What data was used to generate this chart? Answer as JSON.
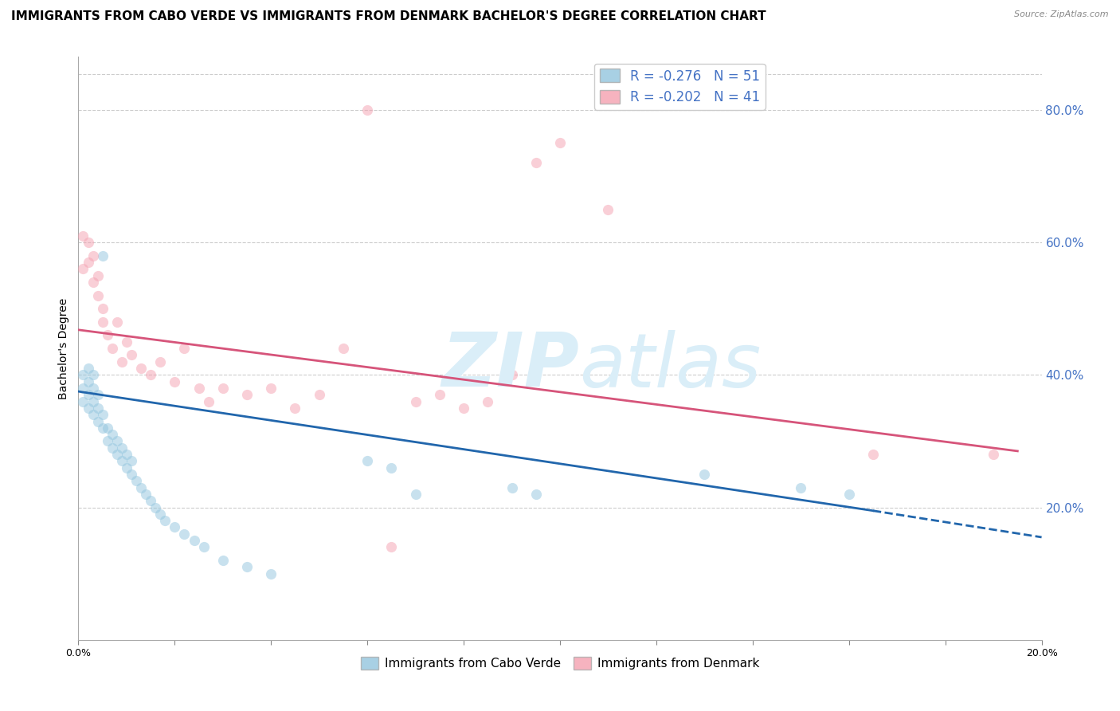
{
  "title": "IMMIGRANTS FROM CABO VERDE VS IMMIGRANTS FROM DENMARK BACHELOR'S DEGREE CORRELATION CHART",
  "source": "Source: ZipAtlas.com",
  "ylabel": "Bachelor's Degree",
  "right_ytick_labels": [
    "20.0%",
    "40.0%",
    "60.0%",
    "80.0%"
  ],
  "right_ytick_values": [
    0.2,
    0.4,
    0.6,
    0.8
  ],
  "xlim": [
    0.0,
    0.2
  ],
  "ylim": [
    0.0,
    0.88
  ],
  "legend_entry_blue": "R = -0.276   N = 51",
  "legend_entry_pink": "R = -0.202   N = 41",
  "legend_label_blue": "Immigrants from Cabo Verde",
  "legend_label_pink": "Immigrants from Denmark",
  "blue_scatter_x": [
    0.001,
    0.001,
    0.001,
    0.002,
    0.002,
    0.002,
    0.002,
    0.003,
    0.003,
    0.003,
    0.003,
    0.004,
    0.004,
    0.004,
    0.005,
    0.005,
    0.005,
    0.006,
    0.006,
    0.007,
    0.007,
    0.008,
    0.008,
    0.009,
    0.009,
    0.01,
    0.01,
    0.011,
    0.011,
    0.012,
    0.013,
    0.014,
    0.015,
    0.016,
    0.017,
    0.018,
    0.02,
    0.022,
    0.024,
    0.026,
    0.03,
    0.035,
    0.04,
    0.06,
    0.065,
    0.07,
    0.09,
    0.095,
    0.13,
    0.15,
    0.16
  ],
  "blue_scatter_y": [
    0.36,
    0.38,
    0.4,
    0.35,
    0.37,
    0.39,
    0.41,
    0.34,
    0.36,
    0.38,
    0.4,
    0.33,
    0.35,
    0.37,
    0.32,
    0.34,
    0.58,
    0.3,
    0.32,
    0.29,
    0.31,
    0.28,
    0.3,
    0.27,
    0.29,
    0.26,
    0.28,
    0.25,
    0.27,
    0.24,
    0.23,
    0.22,
    0.21,
    0.2,
    0.19,
    0.18,
    0.17,
    0.16,
    0.15,
    0.14,
    0.12,
    0.11,
    0.1,
    0.27,
    0.26,
    0.22,
    0.23,
    0.22,
    0.25,
    0.23,
    0.22
  ],
  "pink_scatter_x": [
    0.001,
    0.001,
    0.002,
    0.002,
    0.003,
    0.003,
    0.004,
    0.004,
    0.005,
    0.005,
    0.006,
    0.007,
    0.008,
    0.009,
    0.01,
    0.011,
    0.013,
    0.015,
    0.017,
    0.02,
    0.022,
    0.025,
    0.027,
    0.03,
    0.035,
    0.04,
    0.045,
    0.05,
    0.055,
    0.06,
    0.065,
    0.07,
    0.075,
    0.08,
    0.085,
    0.09,
    0.095,
    0.1,
    0.11,
    0.165,
    0.19
  ],
  "pink_scatter_y": [
    0.61,
    0.56,
    0.57,
    0.6,
    0.54,
    0.58,
    0.55,
    0.52,
    0.5,
    0.48,
    0.46,
    0.44,
    0.48,
    0.42,
    0.45,
    0.43,
    0.41,
    0.4,
    0.42,
    0.39,
    0.44,
    0.38,
    0.36,
    0.38,
    0.37,
    0.38,
    0.35,
    0.37,
    0.44,
    0.8,
    0.14,
    0.36,
    0.37,
    0.35,
    0.36,
    0.4,
    0.72,
    0.75,
    0.65,
    0.28,
    0.28
  ],
  "blue_line_x0": 0.0,
  "blue_line_x1": 0.165,
  "blue_line_xd0": 0.165,
  "blue_line_xd1": 0.2,
  "blue_line_y0": 0.375,
  "blue_line_y1": 0.195,
  "blue_line_yd0": 0.195,
  "blue_line_yd1": 0.155,
  "pink_line_x0": 0.0,
  "pink_line_x1": 0.195,
  "pink_line_y0": 0.468,
  "pink_line_y1": 0.285,
  "scatter_alpha": 0.5,
  "scatter_size": 90,
  "blue_color": "#92c5de",
  "pink_color": "#f4a0b0",
  "blue_line_color": "#2166ac",
  "pink_line_color": "#d6547a",
  "watermark_zip": "ZIP",
  "watermark_atlas": "atlas",
  "watermark_color": "#daeef8",
  "background_color": "#ffffff",
  "grid_color": "#cccccc",
  "title_fontsize": 11,
  "axis_label_fontsize": 10,
  "tick_fontsize": 9,
  "right_tick_color": "#4472c4"
}
